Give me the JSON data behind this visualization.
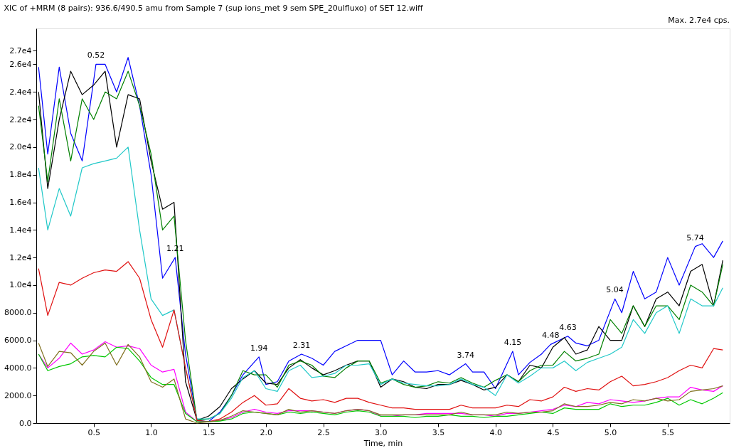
{
  "chart_data": {
    "type": "line",
    "title": "XIC of +MRM (8 pairs): 936.6/490.5 amu from Sample 7 (sup ions_met 9 sem SPE_20ulfluxo) of SET 12.wiff",
    "xlabel": "Time, min",
    "x": [
      0.02,
      0.1,
      0.2,
      0.3,
      0.4,
      0.5,
      0.6,
      0.7,
      0.8,
      0.9,
      1.0,
      1.1,
      1.2,
      1.3,
      1.4,
      1.5,
      1.6,
      1.7,
      1.8,
      1.9,
      2.0,
      2.1,
      2.2,
      2.3,
      2.4,
      2.5,
      2.6,
      2.7,
      2.8,
      2.9,
      3.0,
      3.1,
      3.2,
      3.3,
      3.4,
      3.5,
      3.6,
      3.7,
      3.8,
      3.9,
      4.0,
      4.1,
      4.2,
      4.3,
      4.4,
      4.5,
      4.6,
      4.7,
      4.8,
      4.9,
      5.0,
      5.1,
      5.2,
      5.3,
      5.4,
      5.5,
      5.6,
      5.7,
      5.8,
      5.9,
      5.98
    ],
    "series": [
      {
        "color": "#0000ff",
        "x": [
          0.02,
          0.1,
          0.2,
          0.3,
          0.4,
          0.52,
          0.6,
          0.7,
          0.8,
          0.9,
          1.0,
          1.1,
          1.21,
          1.3,
          1.4,
          1.5,
          1.6,
          1.7,
          1.8,
          1.94,
          2.0,
          2.1,
          2.2,
          2.31,
          2.4,
          2.5,
          2.6,
          2.7,
          2.8,
          2.9,
          3.0,
          3.1,
          3.2,
          3.3,
          3.4,
          3.5,
          3.6,
          3.74,
          3.8,
          3.9,
          4.0,
          4.15,
          4.2,
          4.3,
          4.4,
          4.48,
          4.63,
          4.7,
          4.8,
          4.9,
          5.04,
          5.1,
          5.2,
          5.3,
          5.4,
          5.5,
          5.6,
          5.74,
          5.8,
          5.9,
          5.98
        ],
        "values": [
          25800,
          19500,
          25800,
          21000,
          19000,
          26000,
          26000,
          24000,
          26500,
          23000,
          18000,
          10500,
          12000,
          5000,
          200,
          100,
          800,
          2000,
          3500,
          4800,
          2800,
          3000,
          4500,
          5000,
          4700,
          4200,
          5200,
          5600,
          6000,
          6000,
          6000,
          3500,
          4500,
          3700,
          3700,
          3800,
          3500,
          4300,
          3700,
          3700,
          2500,
          5200,
          3500,
          4400,
          5000,
          5700,
          6300,
          5800,
          5600,
          6000,
          9000,
          8000,
          11000,
          9000,
          9500,
          12000,
          10000,
          12800,
          13000,
          12000,
          13200
        ]
      },
      {
        "color": "#000000",
        "values": [
          24000,
          17000,
          22000,
          25500,
          23800,
          24500,
          25500,
          20000,
          23800,
          23500,
          19000,
          15500,
          16000,
          3000,
          200,
          500,
          1200,
          2500,
          3200,
          3800,
          2900,
          2800,
          4000,
          4600,
          4000,
          3500,
          3800,
          4200,
          4500,
          4500,
          2600,
          3200,
          3000,
          2600,
          2500,
          2800,
          2800,
          3100,
          2800,
          2400,
          2600,
          3500,
          3000,
          4200,
          4000,
          5500,
          6200,
          5000,
          5300,
          7000,
          6000,
          6000,
          8500,
          7000,
          9000,
          9500,
          8500,
          11000,
          11500,
          8500,
          11800
        ]
      },
      {
        "color": "#008000",
        "values": [
          23000,
          17500,
          23500,
          19000,
          23500,
          22000,
          24000,
          23500,
          25500,
          23000,
          19500,
          14000,
          15000,
          6000,
          200,
          300,
          700,
          2000,
          3800,
          3500,
          3500,
          2600,
          4200,
          4500,
          4200,
          3400,
          3300,
          4000,
          4500,
          4500,
          2900,
          3200,
          2800,
          2600,
          2700,
          3000,
          2900,
          3300,
          2900,
          2600,
          3100,
          3500,
          3000,
          3800,
          4200,
          4200,
          5200,
          4500,
          4700,
          5000,
          7500,
          6500,
          8500,
          7000,
          8500,
          8500,
          7500,
          10000,
          9500,
          8500,
          11500
        ]
      },
      {
        "color": "#20c8c8",
        "values": [
          18500,
          14000,
          17000,
          15000,
          18500,
          18800,
          19000,
          19200,
          20000,
          14000,
          9000,
          7800,
          8200,
          4000,
          300,
          300,
          700,
          1800,
          3300,
          3800,
          2500,
          2300,
          3800,
          4200,
          3300,
          3400,
          3600,
          4200,
          4200,
          4300,
          2800,
          3200,
          2900,
          2800,
          2700,
          2700,
          2800,
          3200,
          2800,
          2600,
          2000,
          3500,
          2900,
          3400,
          4000,
          4000,
          4500,
          3800,
          4400,
          4700,
          5000,
          5500,
          7500,
          6500,
          8000,
          8500,
          6500,
          9000,
          8500,
          8500,
          9800
        ]
      },
      {
        "color": "#e01010",
        "values": [
          11200,
          7800,
          10200,
          10000,
          10500,
          10900,
          11100,
          11000,
          11700,
          10500,
          7500,
          5500,
          8200,
          4000,
          200,
          100,
          300,
          800,
          1500,
          2000,
          1300,
          1400,
          2500,
          1800,
          1600,
          1700,
          1500,
          1800,
          1800,
          1500,
          1300,
          1100,
          1100,
          1000,
          1000,
          1000,
          1000,
          1300,
          1100,
          1100,
          1100,
          1300,
          1200,
          1700,
          1600,
          1900,
          2600,
          2300,
          2500,
          2400,
          3000,
          3400,
          2700,
          2800,
          3000,
          3300,
          3800,
          4200,
          4000,
          5400,
          5300
        ]
      },
      {
        "color": "#ff00ff",
        "values": [
          5000,
          4000,
          4700,
          5800,
          5000,
          5300,
          5900,
          5500,
          5600,
          5400,
          4200,
          3700,
          3900,
          800,
          100,
          100,
          200,
          400,
          800,
          1000,
          800,
          700,
          900,
          900,
          900,
          800,
          700,
          900,
          1000,
          900,
          500,
          500,
          600,
          600,
          700,
          700,
          700,
          700,
          600,
          600,
          500,
          700,
          700,
          800,
          900,
          1000,
          1300,
          1200,
          1500,
          1400,
          1700,
          1600,
          1500,
          1600,
          1800,
          1900,
          1900,
          2600,
          2400,
          2300,
          2700
        ]
      },
      {
        "color": "#00c800",
        "values": [
          5000,
          3800,
          4100,
          4300,
          4800,
          4900,
          4800,
          5500,
          5400,
          4500,
          3300,
          2800,
          2800,
          700,
          100,
          100,
          150,
          300,
          700,
          800,
          700,
          600,
          800,
          700,
          800,
          700,
          600,
          800,
          900,
          800,
          500,
          500,
          500,
          400,
          500,
          500,
          600,
          500,
          500,
          400,
          500,
          500,
          600,
          700,
          800,
          700,
          1100,
          1000,
          1000,
          1000,
          1400,
          1200,
          1300,
          1300,
          1500,
          1800,
          1300,
          1700,
          1400,
          1800,
          2200
        ]
      },
      {
        "color": "#807020",
        "values": [
          5800,
          4100,
          5200,
          5100,
          4200,
          5200,
          5800,
          4200,
          5700,
          4800,
          3000,
          2600,
          3200,
          300,
          0,
          100,
          200,
          500,
          900,
          800,
          700,
          600,
          1000,
          800,
          900,
          800,
          700,
          900,
          1000,
          900,
          600,
          600,
          600,
          600,
          600,
          600,
          600,
          800,
          600,
          600,
          600,
          800,
          700,
          800,
          800,
          900,
          1400,
          1200,
          1200,
          1300,
          1500,
          1400,
          1700,
          1600,
          1800,
          1600,
          1700,
          2300,
          2400,
          2500,
          2700
        ]
      }
    ],
    "annotations": [
      {
        "text": "0.52",
        "x": 0.52,
        "y": 26000
      },
      {
        "text": "1.21",
        "x": 1.21,
        "y": 12000
      },
      {
        "text": "1.94",
        "x": 1.94,
        "y": 4800
      },
      {
        "text": "2.31",
        "x": 2.31,
        "y": 5000
      },
      {
        "text": "3.74",
        "x": 3.74,
        "y": 4300
      },
      {
        "text": "4.15",
        "x": 4.15,
        "y": 5200
      },
      {
        "text": "4.48",
        "x": 4.48,
        "y": 5700
      },
      {
        "text": "4.63",
        "x": 4.63,
        "y": 6300
      },
      {
        "text": "5.04",
        "x": 5.04,
        "y": 9000
      },
      {
        "text": "5.74",
        "x": 5.74,
        "y": 12800
      },
      "Max. 2.7e4 cps."
    ],
    "xlim": [
      0.0,
      6.04
    ],
    "ylim": [
      0,
      28600
    ],
    "xticks": [
      0.5,
      {
        "value": 1,
        "label": "1.0"
      },
      1.5,
      {
        "value": 2,
        "label": "2.0"
      },
      2.5,
      {
        "value": 3,
        "label": "3.0"
      },
      3.5,
      {
        "value": 4,
        "label": "4.0"
      },
      4.5,
      {
        "value": 5,
        "label": "5.0"
      },
      5.5
    ],
    "yticks": [
      {
        "value": 0,
        "label": "0.0"
      },
      {
        "value": 2000,
        "label": "2000.0"
      },
      {
        "value": 4000,
        "label": "4000.0"
      },
      {
        "value": 6000,
        "label": "6000.0"
      },
      {
        "value": 8000,
        "label": "8000.0"
      },
      {
        "value": 10000,
        "label": "1.0e4"
      },
      {
        "value": 12000,
        "label": "1.2e4"
      },
      {
        "value": 14000,
        "label": "1.4e4"
      },
      {
        "value": 16000,
        "label": "1.6e4"
      },
      {
        "value": 18000,
        "label": "1.8e4"
      },
      {
        "value": 20000,
        "label": "2.0e4"
      },
      {
        "value": 22000,
        "label": "2.2e4"
      },
      {
        "value": 24000,
        "label": "2.4e4"
      },
      {
        "value": 26000,
        "label": "2.6e4"
      },
      {
        "value": 27000,
        "label": "2.7e4"
      }
    ],
    "grid": false,
    "legend": false,
    "marker": "none",
    "line_style": "solid"
  }
}
